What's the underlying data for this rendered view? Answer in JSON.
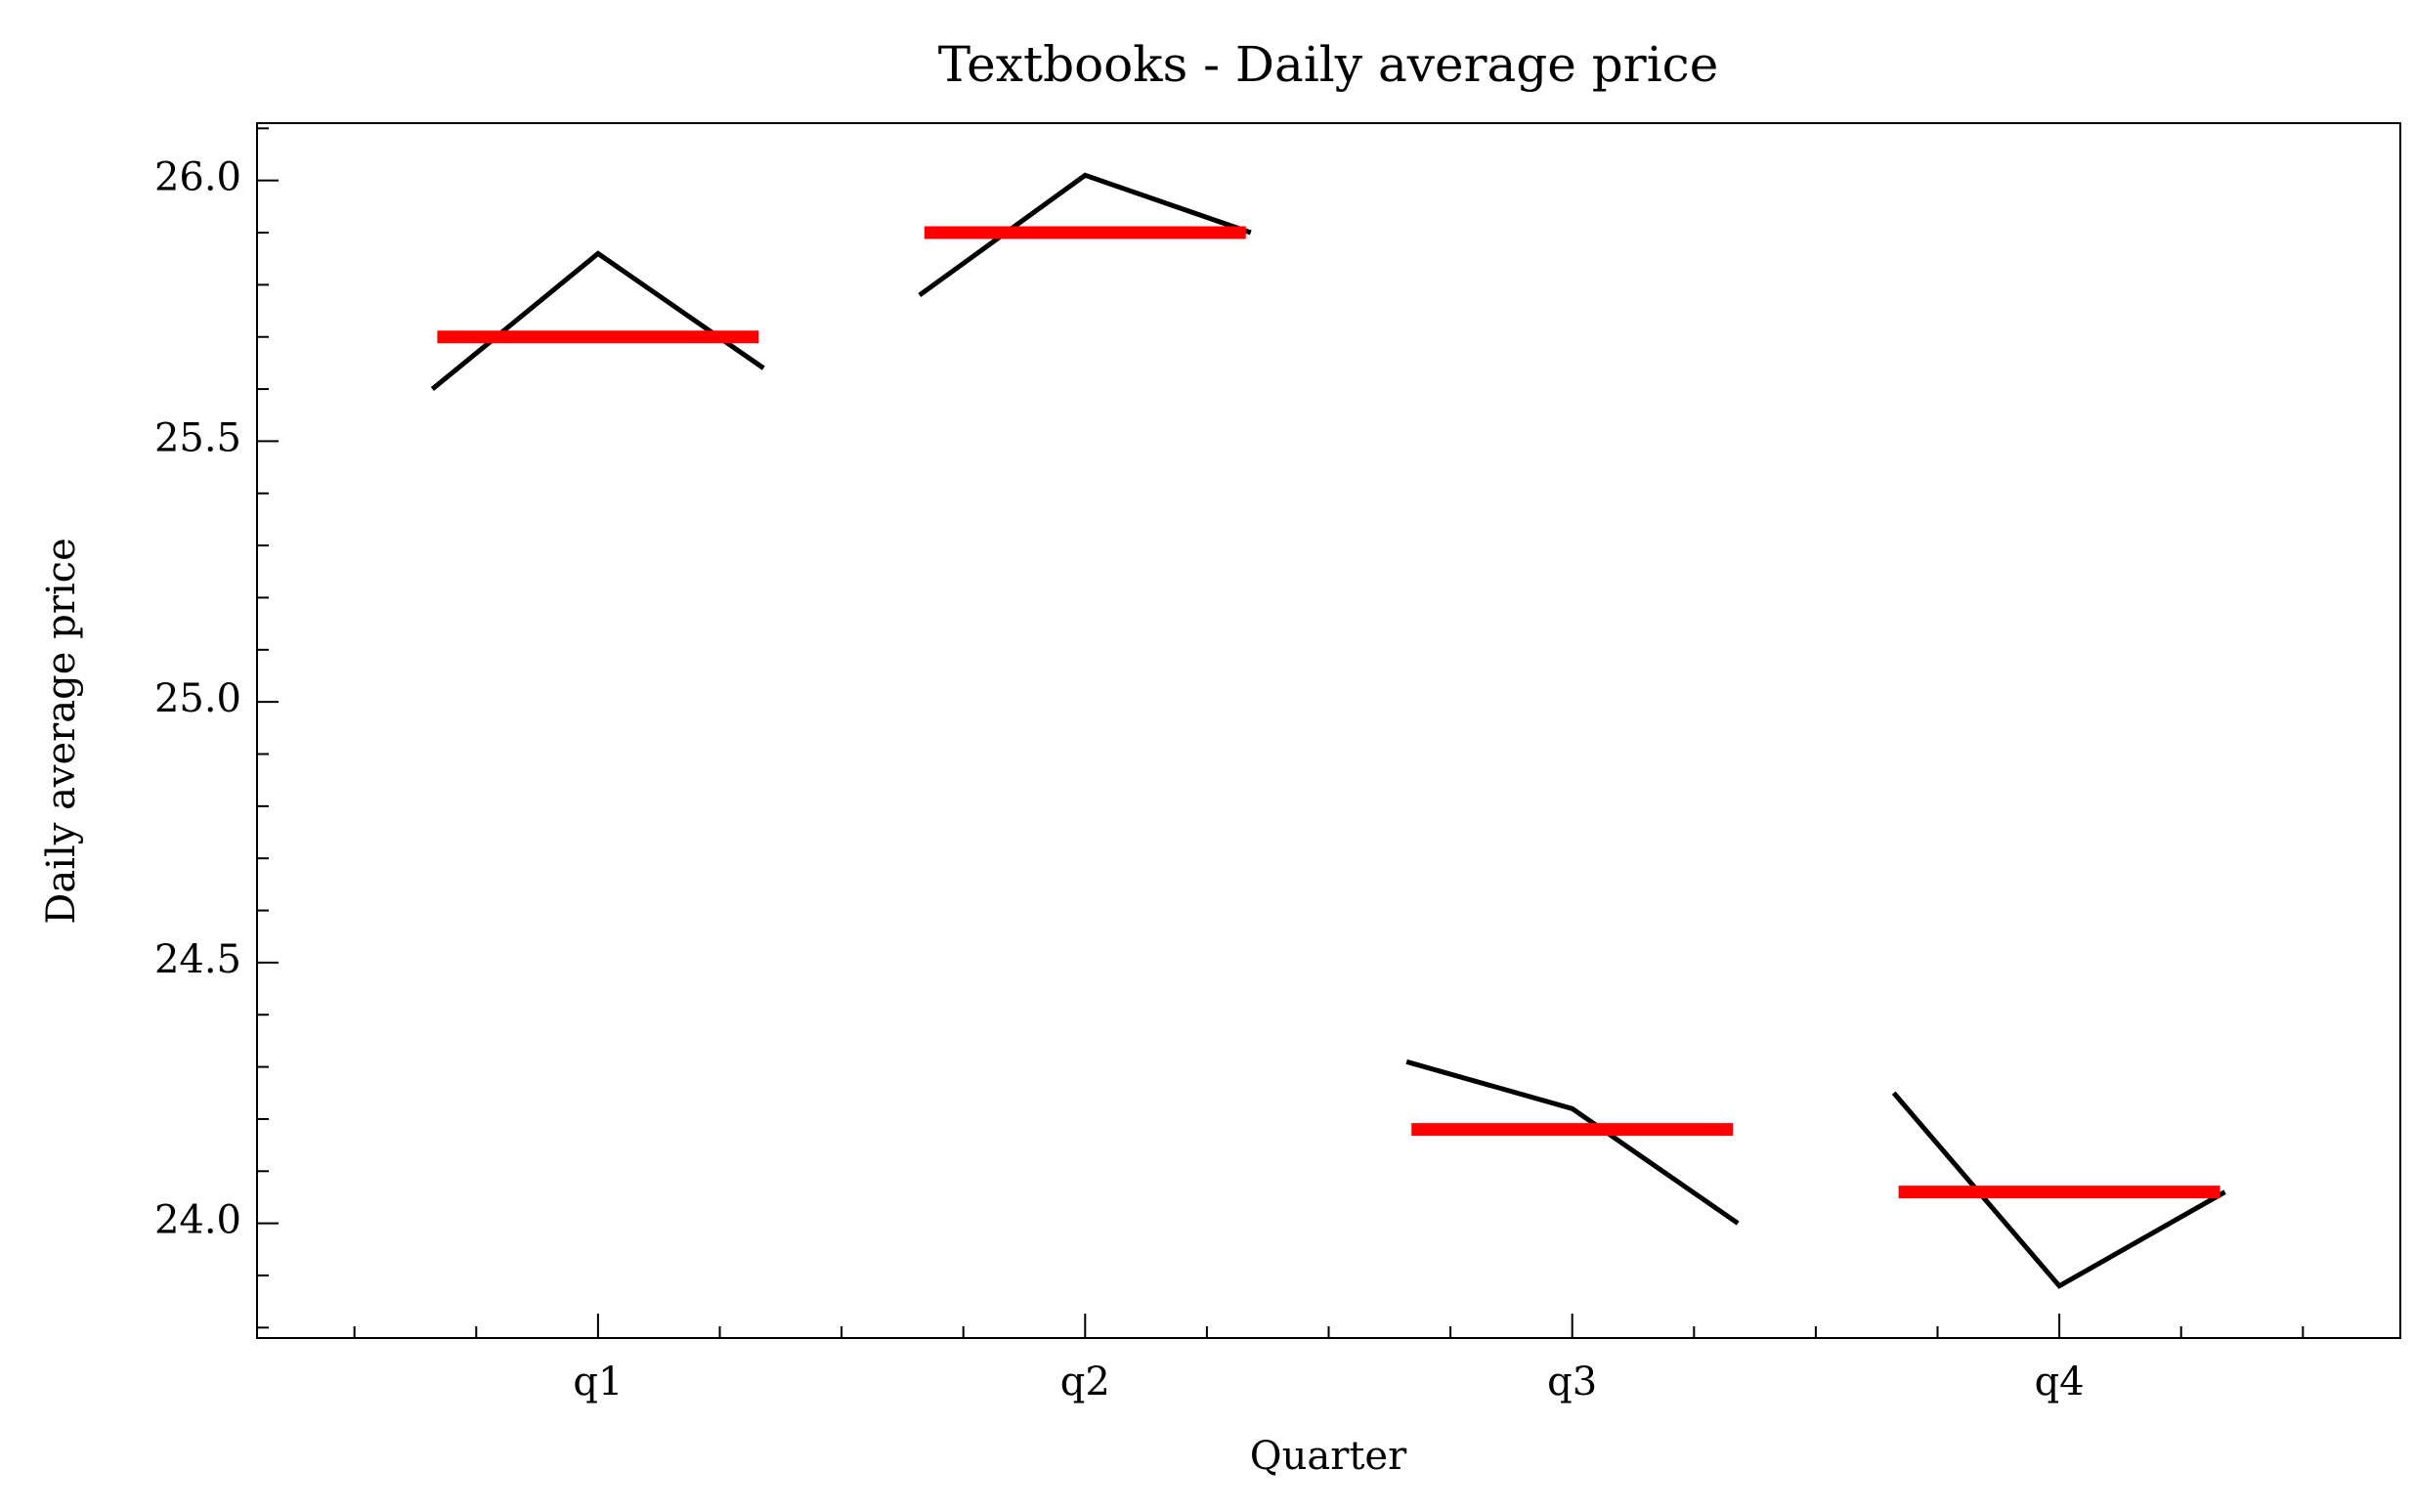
{
  "chart_data": {
    "type": "seasonal",
    "title": "Textbooks - Daily average price",
    "xlabel": "Quarter",
    "ylabel": "Daily average price",
    "categories": [
      "q1",
      "q2",
      "q3",
      "q4"
    ],
    "values": [
      [
        25.6,
        25.86,
        25.64
      ],
      [
        25.78,
        26.01,
        25.9
      ],
      [
        24.31,
        24.22,
        24.0
      ],
      [
        24.25,
        23.88,
        24.06
      ]
    ],
    "means": [
      25.7,
      25.9,
      24.18,
      24.06
    ],
    "line_color": "#000000",
    "mean_color": "#ff0000",
    "xlim": [
      -0.7,
      3.7
    ],
    "xminorticks": [
      -0.5,
      -0.25,
      0.25,
      0.5,
      0.75,
      1.25,
      1.5,
      1.75,
      2.25,
      2.5,
      2.75,
      3.25,
      3.5
    ],
    "ylim": [
      23.78,
      26.11
    ],
    "yticks": [
      {
        "value": 24,
        "label": "24.0"
      },
      {
        "value": 24.5,
        "label": "24.5"
      },
      {
        "value": 25,
        "label": "25.0"
      },
      {
        "value": 25.5,
        "label": "25.5"
      },
      {
        "value": 26,
        "label": "26.0"
      }
    ],
    "yminorticks": [
      23.8,
      23.9,
      24.1,
      24.2,
      24.3,
      24.4,
      24.6,
      24.7,
      24.8,
      24.9,
      25.1,
      25.2,
      25.3,
      25.4,
      25.6,
      25.7,
      25.8,
      25.9,
      26.1
    ]
  }
}
